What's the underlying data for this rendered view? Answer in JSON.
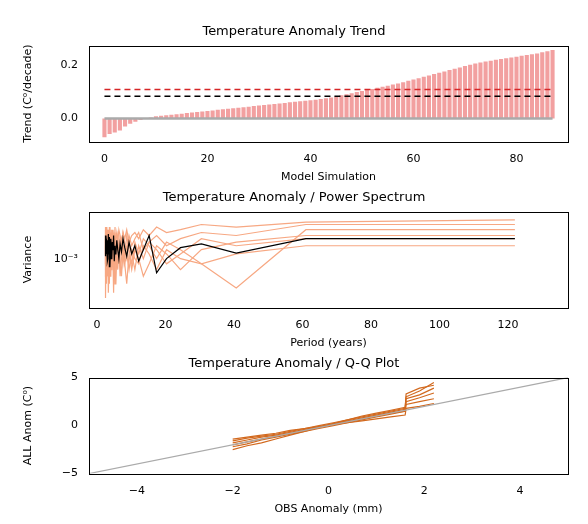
{
  "chart_data": [
    {
      "type": "bar",
      "title": "Temperature Anomaly Trend",
      "x_label": "Model Simulation",
      "y_label": "Trend (C⁰/decade)",
      "x": [
        0,
        1,
        2,
        3,
        4,
        5,
        6,
        7,
        8,
        9,
        10,
        11,
        12,
        13,
        14,
        15,
        16,
        17,
        18,
        19,
        20,
        21,
        22,
        23,
        24,
        25,
        26,
        27,
        28,
        29,
        30,
        31,
        32,
        33,
        34,
        35,
        36,
        37,
        38,
        39,
        40,
        41,
        42,
        43,
        44,
        45,
        46,
        47,
        48,
        49,
        50,
        51,
        52,
        53,
        54,
        55,
        56,
        57,
        58,
        59,
        60,
        61,
        62,
        63,
        64,
        65,
        66,
        67,
        68,
        69,
        70,
        71,
        72,
        73,
        74,
        75,
        76,
        77,
        78,
        79,
        80,
        81,
        82,
        83,
        84,
        85,
        86,
        87
      ],
      "values": [
        -0.07,
        -0.058,
        -0.052,
        -0.045,
        -0.03,
        -0.02,
        -0.012,
        -0.006,
        0.0,
        0.004,
        0.008,
        0.01,
        0.012,
        0.014,
        0.016,
        0.018,
        0.02,
        0.022,
        0.024,
        0.026,
        0.028,
        0.03,
        0.032,
        0.034,
        0.036,
        0.038,
        0.04,
        0.042,
        0.044,
        0.046,
        0.048,
        0.05,
        0.052,
        0.054,
        0.056,
        0.058,
        0.06,
        0.062,
        0.064,
        0.066,
        0.068,
        0.07,
        0.072,
        0.075,
        0.078,
        0.082,
        0.086,
        0.09,
        0.094,
        0.098,
        0.102,
        0.106,
        0.11,
        0.114,
        0.118,
        0.122,
        0.126,
        0.13,
        0.135,
        0.14,
        0.145,
        0.15,
        0.155,
        0.16,
        0.165,
        0.17,
        0.175,
        0.18,
        0.185,
        0.19,
        0.195,
        0.2,
        0.204,
        0.208,
        0.212,
        0.215,
        0.218,
        0.221,
        0.224,
        0.227,
        0.23,
        0.233,
        0.236,
        0.239,
        0.242,
        0.246,
        0.25,
        0.255
      ],
      "color": "#f2a0a0",
      "reference_lines": [
        {
          "value": 0,
          "color": "#aaaaaa",
          "line_style": "solid"
        },
        {
          "value": 0.083,
          "color": "#000000",
          "line_style": "dashed"
        },
        {
          "value": 0.108,
          "color": "#d62728",
          "line_style": "dashed"
        }
      ],
      "xlim": [
        -3,
        90
      ],
      "ylim": [
        -0.086,
        0.271
      ],
      "xticks": [
        0,
        20,
        40,
        60,
        80
      ],
      "yticks": [
        {
          "value": 0,
          "label": "0.0"
        },
        {
          "value": 0.2,
          "label": "0.2"
        }
      ],
      "grid": false
    },
    {
      "type": "line",
      "title": "Temperature Anomaly / Power Spectrum",
      "x_label": "Period (years)",
      "y_label": "Variance",
      "log": "y",
      "x": [
        122,
        61,
        40.67,
        30.5,
        24.4,
        20.33,
        17.43,
        15.25,
        13.56,
        12.2,
        11.09,
        10.17,
        9.38,
        8.71,
        8.13,
        7.63,
        7.18,
        6.78,
        6.42,
        6.1,
        5.81,
        5.55,
        5.3,
        5.08,
        4.88,
        4.69,
        4.52,
        4.36,
        4.21,
        4.07,
        3.94,
        3.81,
        3.7,
        3.59,
        3.49,
        3.39,
        3.3,
        3.21,
        3.13,
        3.05,
        2.98,
        2.9,
        2.84,
        2.77,
        2.71,
        2.65,
        2.6,
        2.54,
        2.49,
        2.44
      ],
      "series": [
        {
          "color": "#f7a883",
          "values": [
            0.0022,
            0.0021,
            0.0019,
            0.002,
            0.0018,
            0.0017,
            0.0019,
            0.0016,
            0.0018,
            0.0015,
            0.0017,
            0.0016,
            0.0014,
            0.0018,
            0.0015,
            0.0017,
            0.0013,
            0.0016,
            0.0018,
            0.0014,
            0.0017,
            0.0015,
            0.0019,
            0.0013,
            0.0016,
            0.0018,
            0.0014,
            0.0017,
            0.0015,
            0.0012,
            0.0016,
            0.0019,
            0.0014,
            0.0017,
            0.0013,
            0.0016,
            0.0018,
            0.0015,
            0.0012,
            0.0017,
            0.0014,
            0.0019,
            0.0016,
            0.0013,
            0.0018,
            0.0015,
            0.0017,
            0.0012,
            0.0016,
            0.0019
          ]
        },
        {
          "color": "#f7a883",
          "values": [
            0.0013,
            0.0013,
            0.0011,
            0.0009,
            0.001,
            0.0012,
            0.0008,
            0.0011,
            0.0013,
            0.0009,
            0.001,
            0.0012,
            0.0008,
            0.0011,
            0.0009,
            0.0013,
            0.001,
            0.0007,
            0.0012,
            0.001,
            0.0009,
            0.0013,
            0.0008,
            0.0011,
            0.0012,
            0.0009,
            0.001,
            0.0014,
            0.0008,
            0.0011,
            0.0013,
            0.0009,
            0.0012,
            0.001,
            0.0007,
            0.0011,
            0.0013,
            0.0009,
            0.0012,
            0.0008,
            0.001,
            0.0013,
            0.0011,
            0.0009,
            0.0012,
            0.0007,
            0.001,
            0.0013,
            0.0009,
            0.0011
          ]
        },
        {
          "color": "#f7a883",
          "values": [
            0.0018,
            0.0018,
            0.00055,
            0.0009,
            0.0012,
            0.0014,
            0.001,
            0.0013,
            0.0015,
            0.0011,
            0.0014,
            0.0009,
            0.0012,
            0.0016,
            0.001,
            0.0013,
            0.0015,
            0.0011,
            0.0009,
            0.0014,
            0.0012,
            0.0016,
            0.001,
            0.0013,
            0.0011,
            0.0015,
            0.0009,
            0.0012,
            0.0014,
            0.001,
            0.0016,
            0.0012,
            0.0009,
            0.0013,
            0.0015,
            0.0011,
            0.0014,
            0.001,
            0.0012,
            0.0016,
            0.0009,
            0.0013,
            0.0011,
            0.0015,
            0.001,
            0.0014,
            0.0012,
            0.0009,
            0.0013,
            0.0016
          ]
        },
        {
          "color": "#f7a883",
          "values": [
            0.0016,
            0.0016,
            0.0014,
            0.0012,
            0.0008,
            0.0011,
            0.0013,
            0.0009,
            0.0007,
            0.001,
            0.0012,
            0.0008,
            0.0011,
            0.0006,
            0.0009,
            0.0012,
            0.0007,
            0.001,
            0.0013,
            0.0008,
            0.0011,
            0.0006,
            0.0009,
            0.0012,
            0.0005,
            0.001,
            0.0013,
            0.0008,
            0.0011,
            0.0007,
            0.0009,
            0.0012,
            0.0006,
            0.001,
            0.0008,
            0.0013,
            0.0005,
            0.0011,
            0.0009,
            0.0012,
            0.0007,
            0.001,
            0.0013,
            0.0006,
            0.0009,
            0.0011,
            0.00045,
            0.001,
            0.0012,
            0.0008
          ]
        },
        {
          "color": "#f7a883",
          "values": [
            0.002,
            0.002,
            0.0016,
            0.0017,
            0.0015,
            0.0013,
            0.0016,
            0.0014,
            0.0012,
            0.0017,
            0.0015,
            0.0013,
            0.0016,
            0.0012,
            0.0014,
            0.0017,
            0.0013,
            0.0015,
            0.0011,
            0.0016,
            0.0014,
            0.0012,
            0.0017,
            0.0013,
            0.0015,
            0.0011,
            0.0016,
            0.0014,
            0.0018,
            0.0012,
            0.0015,
            0.0013,
            0.0017,
            0.0011,
            0.0014,
            0.0016,
            0.0012,
            0.0018,
            0.0013,
            0.0015,
            0.0017,
            0.0011,
            0.0014,
            0.0016,
            0.0012,
            0.0018,
            0.0013,
            0.0015,
            0.0011,
            0.0017
          ]
        },
        {
          "color": "#f7a883",
          "values": [
            0.0015,
            0.0015,
            0.0013,
            0.0015,
            0.0011,
            0.0009,
            0.0012,
            0.0014,
            0.001,
            0.0013,
            0.0008,
            0.0011,
            0.0014,
            0.001,
            0.0012,
            0.0009,
            0.0013,
            0.0015,
            0.001,
            0.0012,
            0.0014,
            0.0009,
            0.0011,
            0.0013,
            0.001,
            0.0014,
            0.0012,
            0.0009,
            0.0013,
            0.0015,
            0.001,
            0.0012,
            0.0008,
            0.0014,
            0.0011,
            0.0013,
            0.001,
            0.0012,
            0.0015,
            0.0009,
            0.0013,
            0.0011,
            0.0014,
            0.001,
            0.0012,
            0.0009,
            0.0015,
            0.0011,
            0.0013,
            0.001
          ]
        },
        {
          "color": "#000000",
          "values": [
            0.0015,
            0.0015,
            0.00112,
            0.00135,
            0.00125,
            0.001,
            0.00075,
            0.0016,
            0.0012,
            0.00095,
            0.0013,
            0.0011,
            0.0014,
            0.00105,
            0.00125,
            0.0015,
            0.00115,
            0.00135,
            0.001,
            0.0012,
            0.00145,
            0.0011,
            0.0013,
            0.00095,
            0.0016,
            0.0012,
            0.0014,
            0.001,
            0.0013,
            0.0015,
            0.00115,
            0.00085,
            0.00135,
            0.00155,
            0.0011,
            0.00125,
            0.00165,
            0.001,
            0.0013,
            0.00145,
            0.00095,
            0.0012,
            0.0015,
            0.0011,
            0.00135,
            0.0016,
            0.00105,
            0.00125,
            0.00145,
            0.00115
          ]
        }
      ],
      "xlim": [
        -2.3,
        137.5
      ],
      "ylim": [
        0.00037,
        0.0026
      ],
      "xticks": [
        0,
        20,
        40,
        60,
        80,
        100,
        120
      ],
      "yticks": [
        {
          "value": 0.001,
          "label": "10⁻³"
        }
      ],
      "grid": false
    },
    {
      "type": "line",
      "title": "Temperature Anomaly / Q-Q Plot",
      "x_label": "OBS Anomaly (mm)",
      "y_label": "ALL Anom (C⁰)",
      "x": [
        -2.0,
        -1.7,
        -1.4,
        -1.1,
        -0.8,
        -0.5,
        -0.2,
        0.1,
        0.4,
        0.7,
        1.0,
        1.3,
        1.6,
        1.62,
        1.9,
        2.2
      ],
      "series": [
        {
          "color": "#d2691e",
          "values": [
            -2.5,
            -2.1,
            -1.8,
            -1.4,
            -1.0,
            -0.6,
            -0.2,
            0.2,
            0.6,
            1.0,
            1.3,
            1.6,
            1.9,
            3.0,
            3.6,
            4.5
          ]
        },
        {
          "color": "#d2691e",
          "values": [
            -1.4,
            -1.2,
            -1.0,
            -0.8,
            -0.5,
            -0.3,
            -0.1,
            0.1,
            0.3,
            0.5,
            0.7,
            0.9,
            1.1,
            1.8,
            2.0,
            2.3
          ]
        },
        {
          "color": "#d2691e",
          "values": [
            -2.0,
            -1.7,
            -1.4,
            -1.1,
            -0.8,
            -0.5,
            -0.2,
            0.1,
            0.4,
            0.7,
            1.0,
            1.3,
            1.5,
            2.5,
            2.9,
            3.4
          ]
        },
        {
          "color": "#d2691e",
          "values": [
            -1.8,
            -1.5,
            -1.2,
            -1.0,
            -0.7,
            -0.4,
            -0.1,
            0.2,
            0.5,
            0.8,
            1.1,
            1.4,
            1.7,
            2.8,
            3.2,
            3.9
          ]
        },
        {
          "color": "#d2691e",
          "values": [
            -2.2,
            -1.9,
            -1.5,
            -1.2,
            -0.9,
            -0.6,
            -0.3,
            0.0,
            0.3,
            0.6,
            0.9,
            1.2,
            1.5,
            2.2,
            2.5,
            2.8
          ]
        },
        {
          "color": "#d2691e",
          "values": [
            -1.6,
            -1.3,
            -1.1,
            -0.9,
            -0.6,
            -0.3,
            0.0,
            0.3,
            0.6,
            0.9,
            1.2,
            1.5,
            1.8,
            3.3,
            3.9,
            4.2
          ]
        },
        {
          "color": "#aaaaaa",
          "x": [
            -5,
            5
          ],
          "values": [
            -5,
            5
          ]
        }
      ],
      "xlim": [
        -5,
        5
      ],
      "ylim": [
        -5,
        5
      ],
      "xticks": [
        {
          "value": -4,
          "label": "−4"
        },
        {
          "value": -2,
          "label": "−2"
        },
        0,
        2,
        4
      ],
      "yticks": [
        {
          "value": -5,
          "label": "−5"
        },
        0,
        5
      ],
      "grid": false
    }
  ]
}
